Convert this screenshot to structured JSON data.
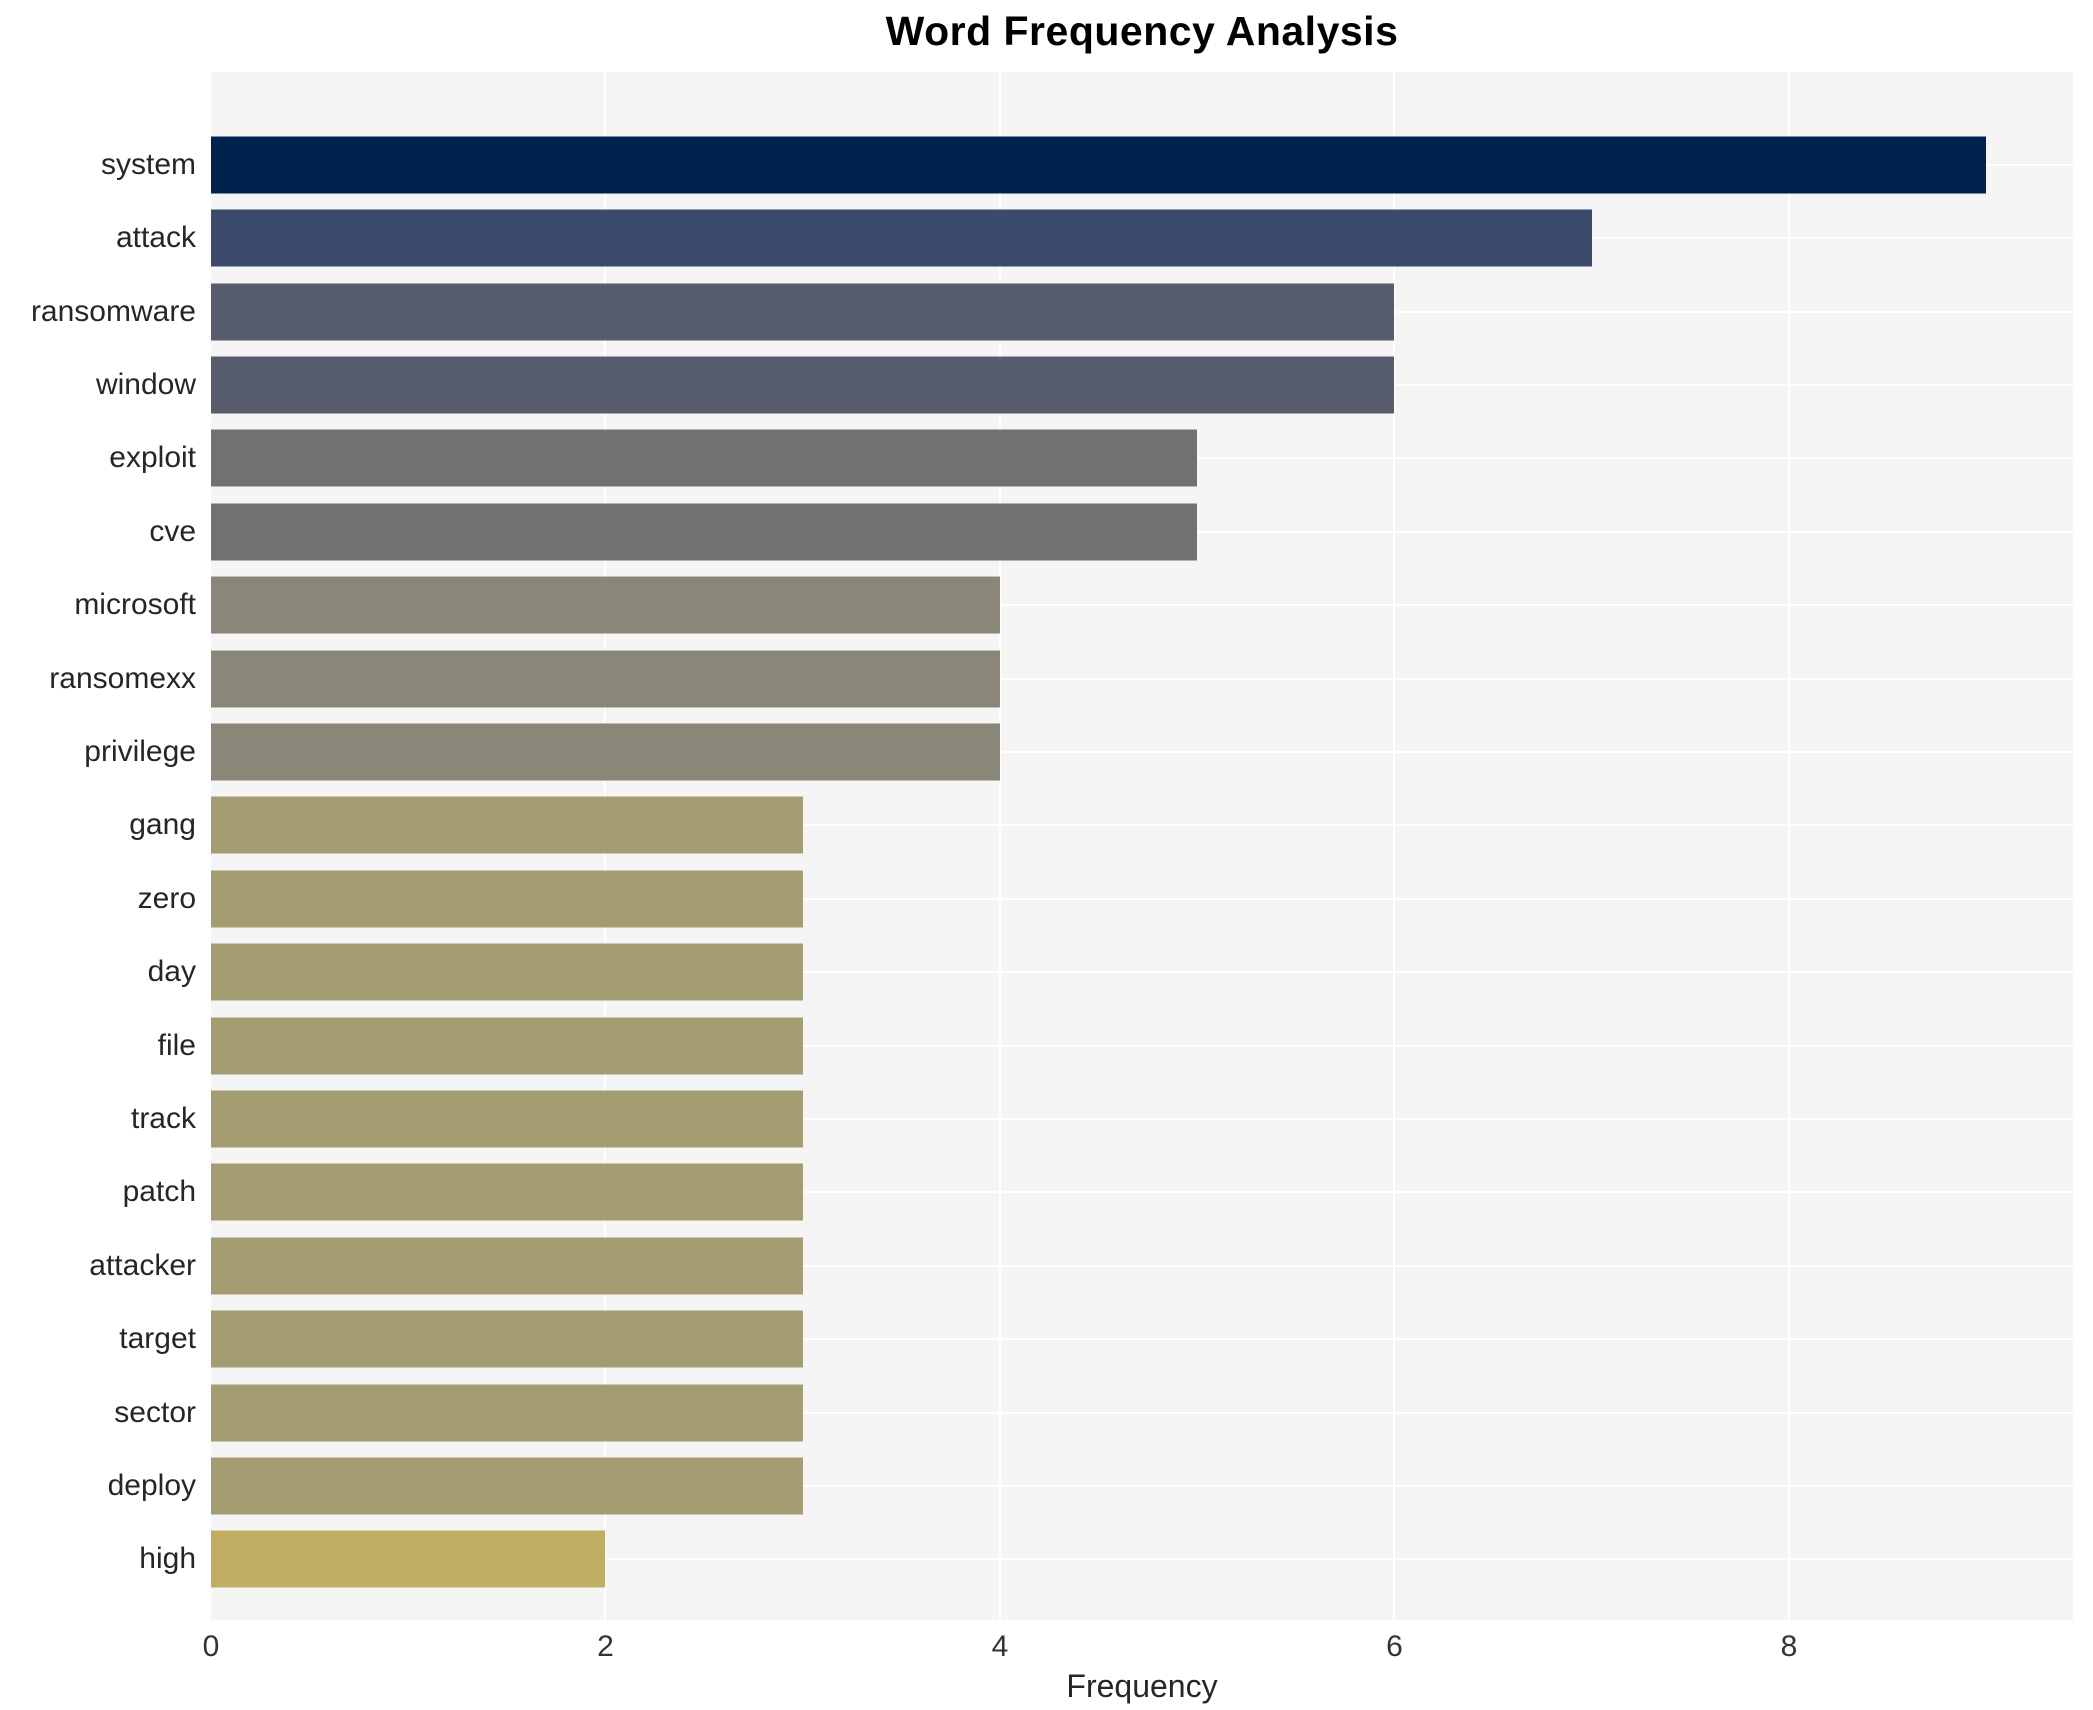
{
  "chart_data": {
    "type": "bar",
    "orientation": "horizontal",
    "title": "Word Frequency Analysis",
    "xlabel": "Frequency",
    "ylabel": "",
    "legend": "none",
    "grid": "white major gridlines on light panel",
    "categories": [
      "system",
      "attack",
      "ransomware",
      "window",
      "exploit",
      "cve",
      "microsoft",
      "ransomexx",
      "privilege",
      "gang",
      "zero",
      "day",
      "file",
      "track",
      "patch",
      "attacker",
      "target",
      "sector",
      "deploy",
      "high"
    ],
    "values": [
      9,
      7,
      6,
      6,
      5,
      5,
      4,
      4,
      4,
      3,
      3,
      3,
      3,
      3,
      3,
      3,
      3,
      3,
      3,
      2
    ],
    "bar_colors": [
      "#00224e",
      "#3b496c",
      "#575d6d",
      "#575d6d",
      "#707173",
      "#707173",
      "#8a8678",
      "#8a8678",
      "#8a8678",
      "#a49d72",
      "#a49d72",
      "#a49d72",
      "#a49d72",
      "#a49d72",
      "#a49d72",
      "#a49d72",
      "#a49d72",
      "#a49d72",
      "#a49d72",
      "#c2ae62"
    ],
    "x_ticks": [
      0,
      2,
      4,
      6,
      8
    ],
    "xlim": [
      0,
      9.44
    ],
    "colors": {
      "page_background": "#ffffff",
      "plot_background": "#f5f5f6",
      "grid_line": "#ffffff",
      "title_text": "#000000",
      "axis_text": "#262626"
    }
  }
}
